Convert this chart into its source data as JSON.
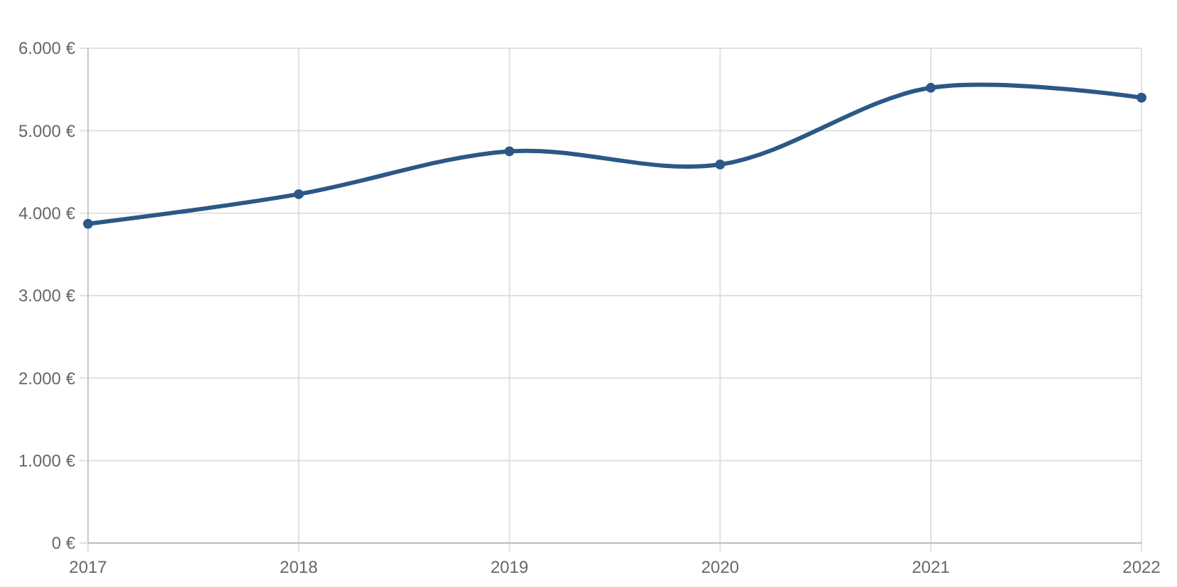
{
  "chart_data": {
    "type": "line",
    "categories": [
      "2017",
      "2018",
      "2019",
      "2020",
      "2021",
      "2022"
    ],
    "series": [
      {
        "color": "#2b5886",
        "values": [
          3870,
          4230,
          4750,
          4590,
          5520,
          5400
        ]
      }
    ],
    "ylim": [
      0,
      6000
    ],
    "yticks": [
      {
        "value": 0,
        "label": "0 €"
      },
      {
        "value": 1000,
        "label": "1.000 €"
      },
      {
        "value": 2000,
        "label": "2.000 €"
      },
      {
        "value": 3000,
        "label": "3.000 €"
      },
      {
        "value": 4000,
        "label": "4.000 €"
      },
      {
        "value": 5000,
        "label": "5.000 €"
      },
      {
        "value": 6000,
        "label": "6.000 €"
      }
    ],
    "grid": true,
    "marker": "circle"
  }
}
